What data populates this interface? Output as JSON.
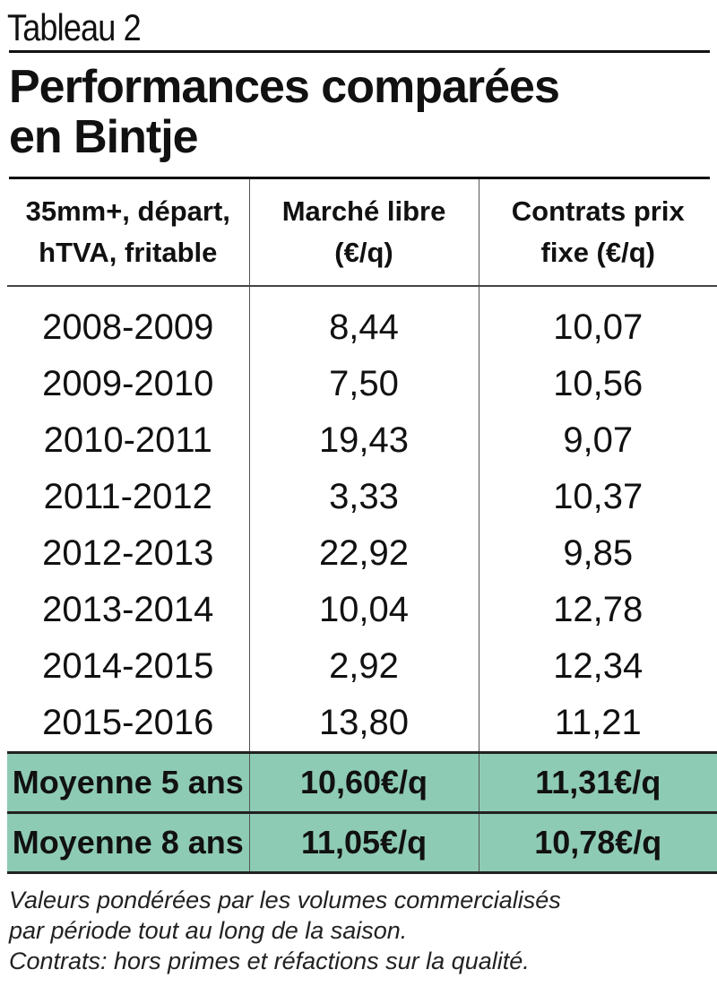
{
  "label": "Tableau 2",
  "title_line1": "Performances comparées",
  "title_line2": "en Bintje",
  "headers": {
    "col1_line1": "35mm+, départ,",
    "col1_line2": "hTVA, fritable",
    "col2_line1": "Marché libre",
    "col2_line2": "(€/q)",
    "col3_line1": "Contrats prix",
    "col3_line2": "fixe (€/q)"
  },
  "rows": [
    {
      "season": "2008-2009",
      "marche": "8,44",
      "contrats": "10,07"
    },
    {
      "season": "2009-2010",
      "marche": "7,50",
      "contrats": "10,56"
    },
    {
      "season": "2010-2011",
      "marche": "19,43",
      "contrats": "9,07"
    },
    {
      "season": "2011-2012",
      "marche": "3,33",
      "contrats": "10,37"
    },
    {
      "season": "2012-2013",
      "marche": "22,92",
      "contrats": "9,85"
    },
    {
      "season": "2013-2014",
      "marche": "10,04",
      "contrats": "12,78"
    },
    {
      "season": "2014-2015",
      "marche": "2,92",
      "contrats": "12,34"
    },
    {
      "season": "2015-2016",
      "marche": "13,80",
      "contrats": "11,21"
    }
  ],
  "averages": [
    {
      "label": "Moyenne 5 ans",
      "marche": "10,60€/q",
      "contrats": "11,31€/q"
    },
    {
      "label": "Moyenne 8 ans",
      "marche": "11,05€/q",
      "contrats": "10,78€/q"
    }
  ],
  "notes": {
    "line1": "Valeurs pondérées par les volumes commercialisés",
    "line2": "par période tout au long de la saison.",
    "line3": "Contrats: hors primes et réfactions sur la qualité."
  },
  "colors": {
    "average_highlight": "#8ecbb5"
  }
}
